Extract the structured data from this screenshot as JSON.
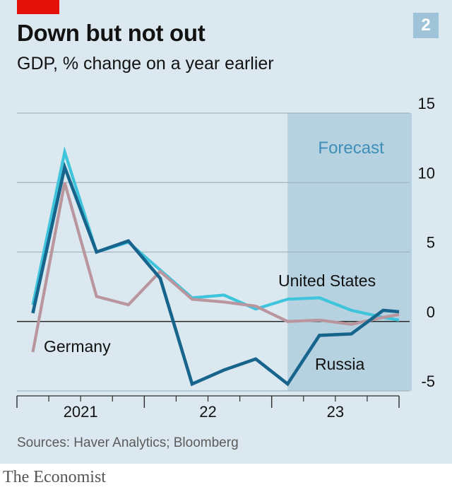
{
  "chart_data": {
    "type": "line",
    "title": "Down but not out",
    "subtitle": "GDP, % change on a year earlier",
    "chart_number": "2",
    "source": "Sources: Haver Analytics; Bloomberg",
    "brand": "The Economist",
    "ylim": [
      -5,
      15
    ],
    "yticks": [
      {
        "value": 15,
        "label": "15"
      },
      {
        "value": 10,
        "label": "10"
      },
      {
        "value": 5,
        "label": "5"
      },
      {
        "value": 0,
        "label": "0"
      },
      {
        "value": -5,
        "label": "-5"
      }
    ],
    "xlim": [
      0,
      12
    ],
    "x_major_ticks": [
      0,
      4,
      8,
      12
    ],
    "x_minor_ticks": [
      1,
      2,
      3,
      5,
      6,
      7,
      9,
      10,
      11
    ],
    "x_labels": [
      {
        "x": 2,
        "label": "2021"
      },
      {
        "x": 6,
        "label": "22"
      },
      {
        "x": 10,
        "label": "23"
      }
    ],
    "forecast_band": {
      "x_start": 8.5,
      "x_end": 12.4,
      "label": "Forecast"
    },
    "series": [
      {
        "name": "United States",
        "color": "#3ec5dc",
        "x": [
          0.5,
          1.5,
          2.5,
          3.5,
          4.5,
          5.5,
          6.5,
          7.5,
          8.5,
          9.5,
          10.5,
          11.5,
          12.0
        ],
        "values": [
          1.2,
          12.2,
          5.0,
          5.7,
          3.7,
          1.7,
          1.9,
          0.9,
          1.6,
          1.7,
          0.8,
          0.3,
          0.1
        ]
      },
      {
        "name": "Germany",
        "color": "#b9969e",
        "x": [
          0.5,
          1.5,
          2.5,
          3.5,
          4.5,
          5.5,
          6.5,
          7.5,
          8.5,
          9.5,
          10.5,
          11.5,
          12.0
        ],
        "values": [
          -2.2,
          10.0,
          1.8,
          1.2,
          3.6,
          1.6,
          1.4,
          1.1,
          0.0,
          0.1,
          -0.2,
          0.3,
          0.5
        ]
      },
      {
        "name": "Russia",
        "color": "#17648d",
        "x": [
          0.5,
          1.5,
          2.5,
          3.5,
          4.5,
          5.5,
          6.5,
          7.5,
          8.5,
          9.5,
          10.5,
          11.5,
          12.0
        ],
        "values": [
          0.6,
          11.1,
          5.0,
          5.8,
          3.1,
          -4.5,
          -3.5,
          -2.7,
          -4.5,
          -1.0,
          -0.9,
          0.8,
          0.7
        ]
      }
    ]
  }
}
